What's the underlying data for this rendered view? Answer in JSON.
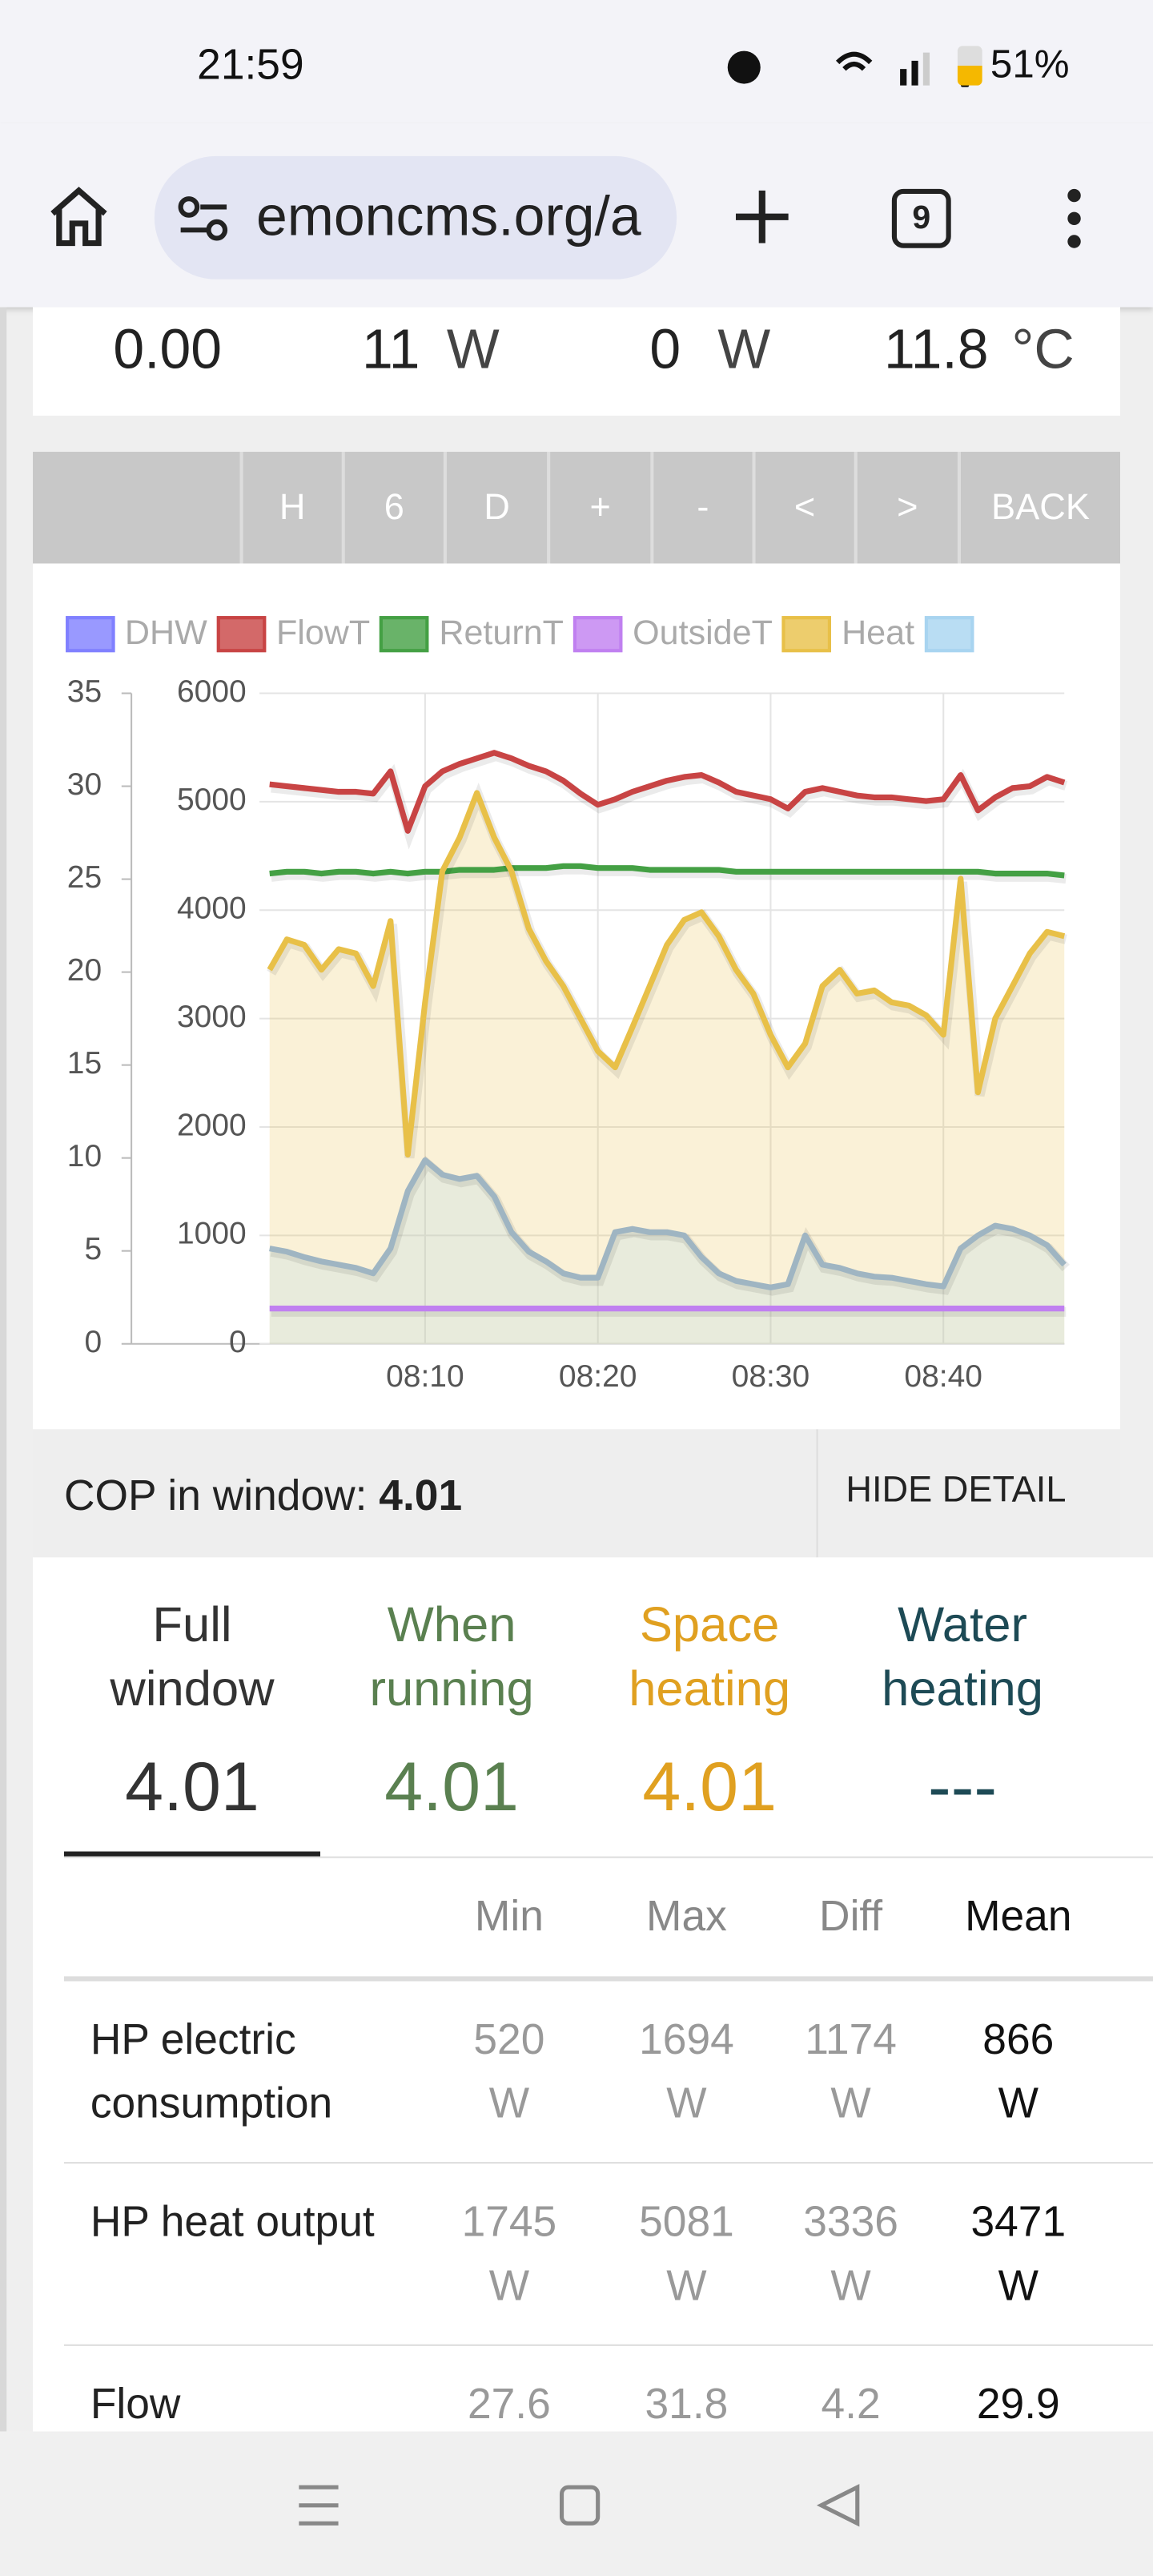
{
  "status_bar": {
    "time": "21:59",
    "battery": "51%"
  },
  "browser": {
    "url": "emoncms.org/a",
    "tab_count": "9"
  },
  "summary": {
    "items": [
      "0.00",
      "11",
      "W",
      "0",
      "W",
      "11.8",
      "°C"
    ]
  },
  "buttons": [
    "H",
    "6",
    "D",
    "+",
    "-",
    "<",
    ">",
    "BACK"
  ],
  "chart_data": {
    "type": "line",
    "x": [
      "08:01",
      "08:02",
      "08:03",
      "08:04",
      "08:05",
      "08:06",
      "08:07",
      "08:08",
      "08:09",
      "08:10",
      "08:11",
      "08:12",
      "08:13",
      "08:14",
      "08:15",
      "08:16",
      "08:17",
      "08:18",
      "08:19",
      "08:20",
      "08:21",
      "08:22",
      "08:23",
      "08:24",
      "08:25",
      "08:26",
      "08:27",
      "08:28",
      "08:29",
      "08:30",
      "08:31",
      "08:32",
      "08:33",
      "08:34",
      "08:35",
      "08:36",
      "08:37",
      "08:38",
      "08:39",
      "08:40",
      "08:41",
      "08:42",
      "08:43",
      "08:44",
      "08:45",
      "08:46",
      "08:47"
    ],
    "xlim": [
      "07:53",
      "08:47"
    ],
    "xticks": [
      "08:10",
      "08:20",
      "08:30",
      "08:40"
    ],
    "ylim": [
      0,
      35
    ],
    "yticks": [
      0,
      5,
      10,
      15,
      20,
      25,
      30,
      35
    ],
    "y2lim": [
      0,
      6000
    ],
    "y2ticks": [
      0,
      1000,
      2000,
      3000,
      4000,
      5000,
      6000
    ],
    "grid": true,
    "series": [
      {
        "name": "DHW",
        "color": "#8080ff",
        "values": [
          null,
          null,
          null,
          null,
          null,
          null,
          null,
          null,
          null,
          null,
          null,
          null,
          null,
          null,
          null,
          null,
          null,
          null,
          null,
          null,
          null,
          null,
          null,
          null,
          null,
          null,
          null,
          null,
          null,
          null,
          null,
          null,
          null,
          null,
          null,
          null,
          null,
          null,
          null,
          null,
          null,
          null,
          null,
          null,
          null,
          null,
          null
        ]
      },
      {
        "name": "FlowT",
        "color": "#c84444",
        "values": [
          30.1,
          30.0,
          29.9,
          29.8,
          29.7,
          29.7,
          29.6,
          30.8,
          27.6,
          30.0,
          30.8,
          31.2,
          31.5,
          31.8,
          31.5,
          31.1,
          30.8,
          30.3,
          29.6,
          29.0,
          29.3,
          29.7,
          30.0,
          30.3,
          30.5,
          30.6,
          30.2,
          29.7,
          29.5,
          29.3,
          28.8,
          29.7,
          29.9,
          29.7,
          29.5,
          29.4,
          29.4,
          29.3,
          29.2,
          29.3,
          30.6,
          28.7,
          29.4,
          29.9,
          30.0,
          30.5,
          30.2
        ]
      },
      {
        "name": "ReturnT",
        "color": "#44a044",
        "values": [
          25.3,
          25.4,
          25.4,
          25.3,
          25.4,
          25.4,
          25.3,
          25.4,
          25.3,
          25.4,
          25.4,
          25.5,
          25.5,
          25.5,
          25.6,
          25.6,
          25.6,
          25.7,
          25.7,
          25.6,
          25.6,
          25.6,
          25.5,
          25.5,
          25.5,
          25.5,
          25.5,
          25.4,
          25.4,
          25.4,
          25.4,
          25.4,
          25.4,
          25.4,
          25.4,
          25.4,
          25.4,
          25.4,
          25.4,
          25.4,
          25.4,
          25.4,
          25.3,
          25.3,
          25.3,
          25.3,
          25.2
        ]
      },
      {
        "name": "OutsideT",
        "color": "#c080f0",
        "values": [
          1.9,
          1.9,
          1.9,
          1.9,
          1.9,
          1.9,
          1.9,
          1.9,
          1.9,
          1.9,
          1.9,
          1.9,
          1.9,
          1.9,
          1.9,
          1.9,
          1.9,
          1.9,
          1.9,
          1.9,
          1.9,
          1.9,
          1.9,
          1.9,
          1.9,
          1.9,
          1.9,
          1.9,
          1.9,
          1.9,
          1.9,
          1.9,
          1.9,
          1.9,
          1.9,
          1.9,
          1.9,
          1.9,
          1.9,
          1.9,
          1.9,
          1.9,
          1.9,
          1.9,
          1.9,
          1.9,
          1.9
        ]
      },
      {
        "name": "Heat",
        "color": "#e8c048",
        "axis": "y2",
        "area": true,
        "values": [
          3450,
          3730,
          3680,
          3450,
          3640,
          3600,
          3300,
          3900,
          1745,
          3150,
          4360,
          4670,
          5081,
          4670,
          4360,
          3830,
          3530,
          3300,
          3000,
          2700,
          2550,
          2920,
          3300,
          3680,
          3910,
          3980,
          3760,
          3450,
          3230,
          2850,
          2550,
          2770,
          3300,
          3450,
          3230,
          3260,
          3150,
          3120,
          3030,
          2850,
          4290,
          2320,
          3000,
          3300,
          3600,
          3800,
          3760
        ]
      },
      {
        "name": null,
        "color": "#a8d4f0",
        "axis": "y2",
        "area": true,
        "values": [
          880,
          850,
          800,
          760,
          730,
          700,
          650,
          880,
          1410,
          1694,
          1560,
          1520,
          1550,
          1360,
          1030,
          850,
          760,
          650,
          610,
          610,
          1030,
          1060,
          1030,
          1030,
          1000,
          800,
          650,
          580,
          550,
          520,
          550,
          1000,
          730,
          700,
          650,
          620,
          610,
          580,
          550,
          530,
          880,
          1000,
          1090,
          1060,
          1000,
          910,
          730
        ]
      }
    ]
  },
  "cop": {
    "label": "COP in window:",
    "value": "4.01",
    "button": "HIDE DETAIL"
  },
  "tabs": [
    {
      "label": "Full window",
      "value": "4.01",
      "color": "#333333"
    },
    {
      "label": "When running",
      "value": "4.01",
      "color": "#5a8050"
    },
    {
      "label": "Space heating",
      "value": "4.01",
      "color": "#e0a020"
    },
    {
      "label": "Water heating",
      "value": "---",
      "color": "#1d4a55"
    }
  ],
  "table": {
    "headers": [
      "Min",
      "Max",
      "Diff",
      "Mean"
    ],
    "rows": [
      {
        "label": "HP electric consumption",
        "cells": [
          "520 W",
          "1694 W",
          "1174 W",
          "866 W"
        ]
      },
      {
        "label": "HP heat output",
        "cells": [
          "1745 W",
          "5081 W",
          "3336 W",
          "3471 W"
        ]
      },
      {
        "label": "Flow",
        "cells": [
          "27.6",
          "31.8",
          "4.2",
          "29.9"
        ]
      }
    ]
  }
}
